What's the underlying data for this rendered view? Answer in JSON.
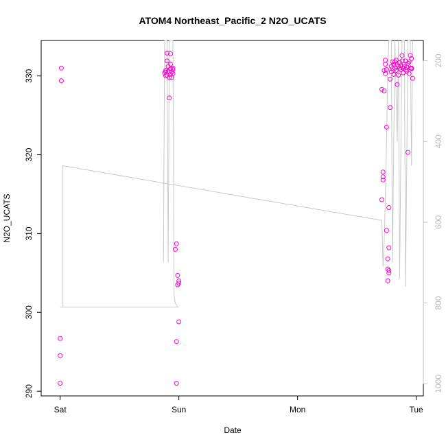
{
  "chart_data": {
    "type": "scatter",
    "title": "ATOM4 Northeast_Pacific_2 N2O_UCATS",
    "xlabel": "Date",
    "ylabel": "N2O_UCATS",
    "x_ticks": [
      "Sat",
      "Sun",
      "Mon",
      "Tue"
    ],
    "x_tick_values": [
      0,
      1,
      2,
      3
    ],
    "xlim": [
      -0.16,
      3.06
    ],
    "ylim": [
      289.4,
      334.5
    ],
    "y_ticks": [
      290,
      300,
      310,
      320,
      330
    ],
    "y2_ticks": [
      200,
      400,
      600,
      800,
      1000
    ],
    "y2lim": [
      1030,
      150
    ],
    "colors": {
      "points": "#ff00cc",
      "pressure": "#c8c8c8",
      "axis": "#000000",
      "y2_axis": "#bdbdbd"
    },
    "series": [
      {
        "values": [
          [
            0.01,
            331.0
          ],
          [
            0.01,
            329.4
          ],
          [
            0.0,
            296.7
          ],
          [
            0.0,
            294.5
          ],
          [
            0.0,
            291.0
          ],
          [
            0.88,
            330.4
          ],
          [
            0.89,
            330.0
          ],
          [
            0.89,
            330.7
          ],
          [
            0.89,
            330.5
          ],
          [
            0.9,
            330.1
          ],
          [
            0.9,
            331.9
          ],
          [
            0.9,
            332.9
          ],
          [
            0.91,
            331.2
          ],
          [
            0.91,
            330.6
          ],
          [
            0.92,
            327.2
          ],
          [
            0.92,
            329.8
          ],
          [
            0.93,
            330.2
          ],
          [
            0.93,
            331.5
          ],
          [
            0.93,
            332.8
          ],
          [
            0.93,
            330.9
          ],
          [
            0.94,
            330.5
          ],
          [
            0.94,
            329.8
          ],
          [
            0.95,
            330.3
          ],
          [
            0.95,
            331.0
          ],
          [
            0.95,
            330.8
          ],
          [
            0.97,
            308.0
          ],
          [
            0.98,
            308.7
          ],
          [
            0.98,
            296.3
          ],
          [
            0.98,
            291.0
          ],
          [
            0.99,
            304.7
          ],
          [
            0.99,
            303.5
          ],
          [
            1.0,
            304.0
          ],
          [
            1.0,
            303.7
          ],
          [
            1.0,
            298.8
          ],
          [
            2.71,
            328.3
          ],
          [
            2.72,
            317.8
          ],
          [
            2.72,
            316.8
          ],
          [
            2.72,
            317.2
          ],
          [
            2.71,
            314.3
          ],
          [
            2.73,
            328.1
          ],
          [
            2.73,
            330.7
          ],
          [
            2.74,
            331.5
          ],
          [
            2.74,
            332.0
          ],
          [
            2.74,
            330.3
          ],
          [
            2.75,
            330.8
          ],
          [
            2.75,
            323.5
          ],
          [
            2.75,
            310.4
          ],
          [
            2.76,
            305.5
          ],
          [
            2.76,
            306.8
          ],
          [
            2.76,
            304.0
          ],
          [
            2.77,
            305.0
          ],
          [
            2.77,
            305.3
          ],
          [
            2.77,
            308.2
          ],
          [
            2.77,
            313.3
          ],
          [
            2.78,
            326.0
          ],
          [
            2.78,
            329.6
          ],
          [
            2.79,
            330.5
          ],
          [
            2.79,
            331.2
          ],
          [
            2.8,
            331.8
          ],
          [
            2.8,
            330.9
          ],
          [
            2.81,
            331.5
          ],
          [
            2.81,
            330.2
          ],
          [
            2.82,
            331.0
          ],
          [
            2.82,
            331.8
          ],
          [
            2.83,
            332.0
          ],
          [
            2.83,
            330.7
          ],
          [
            2.84,
            331.4
          ],
          [
            2.84,
            328.9
          ],
          [
            2.85,
            330.1
          ],
          [
            2.85,
            331.2
          ],
          [
            2.86,
            331.0
          ],
          [
            2.86,
            331.7
          ],
          [
            2.87,
            330.8
          ],
          [
            2.87,
            331.3
          ],
          [
            2.88,
            332.6
          ],
          [
            2.88,
            331.9
          ],
          [
            2.89,
            331.0
          ],
          [
            2.89,
            330.4
          ],
          [
            2.9,
            331.5
          ],
          [
            2.9,
            331.2
          ],
          [
            2.91,
            330.8
          ],
          [
            2.91,
            331.9
          ],
          [
            2.92,
            331.1
          ],
          [
            2.92,
            330.6
          ],
          [
            2.93,
            331.6
          ],
          [
            2.93,
            320.3
          ],
          [
            2.94,
            330.3
          ],
          [
            2.94,
            331.8
          ],
          [
            2.95,
            331.0
          ],
          [
            2.95,
            332.6
          ],
          [
            2.96,
            332.2
          ],
          [
            2.96,
            331.0
          ],
          [
            2.97,
            329.7
          ],
          [
            2.96,
            330.9
          ]
        ]
      },
      {
        "axis": "right",
        "values": [
          [
            0.0,
            810
          ],
          [
            0.02,
            810
          ],
          [
            0.02,
            460
          ],
          [
            2.7,
            595
          ],
          [
            2.71,
            595
          ],
          [
            2.72,
            710
          ],
          [
            2.73,
            650
          ],
          [
            2.74,
            540
          ],
          [
            2.75,
            400
          ],
          [
            2.76,
            220
          ],
          [
            2.77,
            150
          ],
          [
            2.79,
            150
          ],
          [
            2.8,
            700
          ],
          [
            2.82,
            150
          ],
          [
            2.84,
            400
          ],
          [
            2.85,
            150
          ],
          [
            2.86,
            740
          ],
          [
            2.88,
            150
          ],
          [
            2.9,
            150
          ],
          [
            2.91,
            760
          ],
          [
            2.93,
            150
          ],
          [
            2.95,
            150
          ],
          [
            2.96,
            460
          ],
          [
            2.97,
            150
          ]
        ]
      }
    ],
    "pressure_sun_segment": [
      [
        0.87,
        700
      ],
      [
        0.88,
        150
      ],
      [
        0.9,
        150
      ],
      [
        0.91,
        700
      ],
      [
        0.92,
        150
      ],
      [
        0.95,
        150
      ],
      [
        0.96,
        780
      ],
      [
        0.97,
        800
      ],
      [
        0.99,
        810
      ],
      [
        1.0,
        810
      ],
      [
        0.02,
        810
      ]
    ]
  }
}
